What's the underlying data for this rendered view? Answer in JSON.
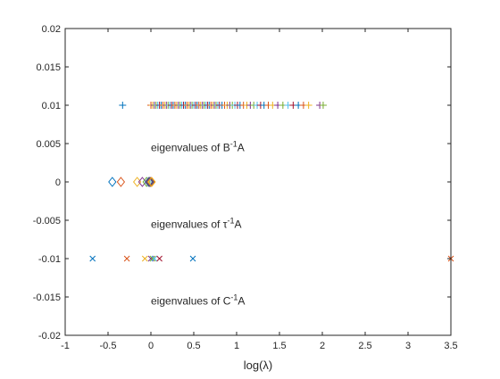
{
  "chart_data": {
    "type": "scatter",
    "xlabel": "log(λ)",
    "xlim": [
      -1,
      3.5
    ],
    "ylim": [
      -0.02,
      0.02
    ],
    "xticks": [
      -1,
      -0.5,
      0,
      0.5,
      1,
      1.5,
      2,
      2.5,
      3,
      3.5
    ],
    "xtick_labels": [
      "-1",
      "-0.5",
      "0",
      "0.5",
      "1",
      "1.5",
      "2",
      "2.5",
      "3",
      "3.5"
    ],
    "yticks": [
      -0.02,
      -0.015,
      -0.01,
      -0.005,
      0,
      0.005,
      0.01,
      0.015,
      0.02
    ],
    "ytick_labels": [
      "-0.02",
      "-0.015",
      "-0.01",
      "-0.005",
      "0",
      "0.005",
      "0.01",
      "0.015",
      "0.02"
    ],
    "grid": false,
    "palette": [
      "#0072BD",
      "#D95319",
      "#EDB120",
      "#7E2F8E",
      "#77AC30",
      "#4DBEEE",
      "#A2142F"
    ],
    "series": [
      {
        "marker": "plus",
        "y": 0.01,
        "x": [
          -0.33,
          0.0,
          0.02,
          0.04,
          0.06,
          0.08,
          0.1,
          0.12,
          0.14,
          0.16,
          0.18,
          0.2,
          0.22,
          0.24,
          0.26,
          0.28,
          0.3,
          0.32,
          0.34,
          0.36,
          0.38,
          0.4,
          0.42,
          0.44,
          0.46,
          0.48,
          0.5,
          0.52,
          0.54,
          0.56,
          0.58,
          0.6,
          0.62,
          0.64,
          0.66,
          0.68,
          0.7,
          0.72,
          0.74,
          0.76,
          0.78,
          0.8,
          0.83,
          0.86,
          0.89,
          0.92,
          0.95,
          0.98,
          1.01,
          1.04,
          1.08,
          1.12,
          1.16,
          1.2,
          1.24,
          1.28,
          1.32,
          1.37,
          1.42,
          1.48,
          1.54,
          1.6,
          1.66,
          1.72,
          1.78,
          1.84,
          1.97,
          2.01
        ]
      },
      {
        "marker": "diamond",
        "y": 0,
        "x": [
          -0.45,
          -0.35,
          -0.16,
          -0.1,
          -0.05,
          -0.03,
          -0.02,
          -0.01,
          0.0,
          0.01
        ]
      },
      {
        "marker": "cross",
        "y": -0.01,
        "x": [
          -0.68,
          -0.28,
          -0.07,
          0.0,
          0.02,
          0.04,
          0.1,
          0.49,
          3.5
        ]
      }
    ],
    "annotations": [
      {
        "text": "eigenvalues of B",
        "sup": "-1",
        "post": "A",
        "x": 0.0,
        "y": 0.0045
      },
      {
        "text": "eigenvalues of τ",
        "sup": "-1",
        "post": "A",
        "x": 0.0,
        "y": -0.0055
      },
      {
        "text": "eigenvalues of C",
        "sup": "-1",
        "post": "A",
        "x": 0.0,
        "y": -0.0155
      }
    ]
  }
}
